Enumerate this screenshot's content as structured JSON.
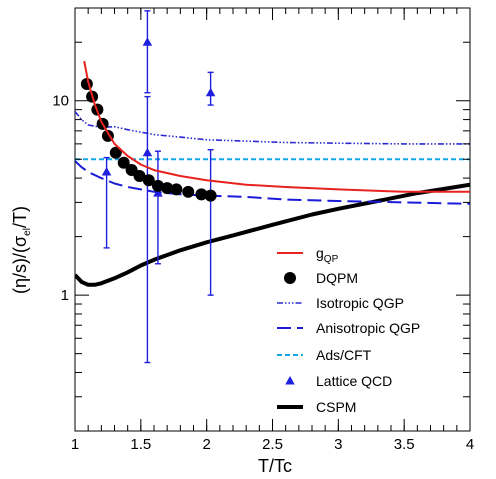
{
  "chart_data": {
    "type": "line",
    "xlabel": "T/Tc",
    "ylabel": "(η/s)/(σ",
    "ylabel_sub": "el",
    "ylabel_tail": "/T)",
    "xlim": [
      1,
      4
    ],
    "ylim": [
      0.2,
      30
    ],
    "yscale": "log",
    "grid": false,
    "legend_position": "bottom-right",
    "x_ticks": [
      {
        "value": 1,
        "label": "1"
      },
      {
        "value": 1.5,
        "label": "1.5"
      },
      {
        "value": 2,
        "label": "2"
      },
      {
        "value": 2.5,
        "label": "2.5"
      },
      {
        "value": 3,
        "label": "3"
      },
      {
        "value": 3.5,
        "label": "3.5"
      },
      {
        "value": 4,
        "label": "4"
      }
    ],
    "y_ticks": [
      {
        "value": 1,
        "label": "1"
      },
      {
        "value": 10,
        "label": "10"
      }
    ],
    "series": [
      {
        "key": "gqp",
        "name": "g",
        "name_sub": "QP",
        "style": "line",
        "color": "#e8221e",
        "width": 2,
        "dash": "",
        "x": [
          1.07,
          1.1,
          1.15,
          1.2,
          1.3,
          1.4,
          1.5,
          1.6,
          1.8,
          2.0,
          2.3,
          2.6,
          3.0,
          3.5,
          4.0
        ],
        "y": [
          16.0,
          12.5,
          9.6,
          7.8,
          6.0,
          5.2,
          4.7,
          4.4,
          4.1,
          3.9,
          3.7,
          3.6,
          3.5,
          3.4,
          3.4
        ]
      },
      {
        "key": "dqpm",
        "name": "DQPM",
        "style": "markers",
        "marker": "circle",
        "color": "#000000",
        "x": [
          1.09,
          1.13,
          1.17,
          1.21,
          1.25,
          1.31,
          1.37,
          1.43,
          1.49,
          1.56,
          1.63,
          1.7,
          1.77,
          1.86,
          1.96,
          2.03
        ],
        "y": [
          12.2,
          10.5,
          9.0,
          7.6,
          6.6,
          5.4,
          4.8,
          4.4,
          4.1,
          3.9,
          3.65,
          3.55,
          3.5,
          3.4,
          3.3,
          3.25
        ]
      },
      {
        "key": "isotropic",
        "name": "Isotropic QGP",
        "style": "line",
        "color": "#2a2ad0",
        "width": 1.6,
        "dash": "6 2 1.5 2 1.5 2 1.5 2",
        "x": [
          1.0,
          1.05,
          1.1,
          1.2,
          1.3,
          1.4,
          1.5,
          1.6,
          1.8,
          2.0,
          2.3,
          2.6,
          3.0,
          3.5,
          4.0
        ],
        "y": [
          8.8,
          8.0,
          7.5,
          7.3,
          7.35,
          7.1,
          6.9,
          6.7,
          6.5,
          6.3,
          6.2,
          6.1,
          6.05,
          6.0,
          6.0
        ]
      },
      {
        "key": "anisotropic",
        "name": "Anisotropic QGP",
        "style": "line",
        "color": "#1a1ad8",
        "width": 2,
        "dash": "14 6",
        "x": [
          1.0,
          1.05,
          1.1,
          1.2,
          1.3,
          1.4,
          1.5,
          1.6,
          1.8,
          2.0,
          2.3,
          2.6,
          3.0,
          3.5,
          4.0
        ],
        "y": [
          4.9,
          4.55,
          4.3,
          4.0,
          3.75,
          3.6,
          3.5,
          3.4,
          3.3,
          3.25,
          3.2,
          3.1,
          3.05,
          3.0,
          2.95
        ]
      },
      {
        "key": "adscft",
        "name": "Ads/CFT",
        "style": "line",
        "color": "#14a5e8",
        "width": 2,
        "dash": "5 3",
        "x": [
          1.0,
          4.0
        ],
        "y": [
          5.0,
          5.0
        ]
      },
      {
        "key": "lattice",
        "name": "Lattice QCD",
        "style": "errorbars",
        "marker": "triangle",
        "color": "#1f1fe0",
        "points": [
          {
            "x": 1.24,
            "y": 4.3,
            "lo": 1.75,
            "hi": 5.1
          },
          {
            "x": 1.55,
            "y": 20.0,
            "lo": 11.0,
            "hi": 29.0
          },
          {
            "x": 1.55,
            "y": 5.4,
            "lo": 0.45,
            "hi": 10.5
          },
          {
            "x": 1.63,
            "y": 3.35,
            "lo": 1.45,
            "hi": 5.5
          },
          {
            "x": 2.03,
            "y": 11.0,
            "lo": 9.5,
            "hi": 14.0
          },
          {
            "x": 2.03,
            "y": 3.3,
            "lo": 1.0,
            "hi": 5.6
          }
        ]
      },
      {
        "key": "cspm",
        "name": "CSPM",
        "style": "line",
        "color": "#000000",
        "width": 4,
        "dash": "",
        "x": [
          1.0,
          1.05,
          1.1,
          1.15,
          1.2,
          1.3,
          1.4,
          1.5,
          1.6,
          1.8,
          2.0,
          2.2,
          2.5,
          2.8,
          3.0,
          3.3,
          3.6,
          4.0
        ],
        "y": [
          1.27,
          1.17,
          1.13,
          1.13,
          1.15,
          1.22,
          1.31,
          1.42,
          1.52,
          1.7,
          1.87,
          2.03,
          2.3,
          2.6,
          2.78,
          3.05,
          3.35,
          3.7
        ]
      }
    ]
  }
}
